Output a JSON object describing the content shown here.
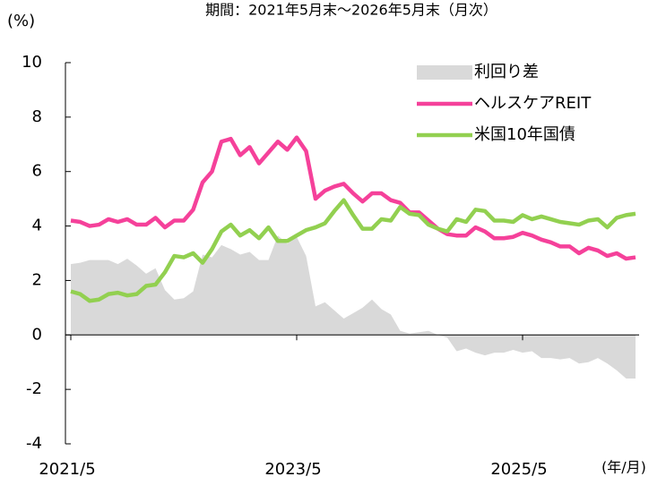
{
  "chart_data": {
    "type": "line",
    "title": "期間：2021年5月末～2026年5月末（月次）",
    "y_label": "(%)",
    "x_label": "(年/月)",
    "categories": [
      "2021/5",
      null,
      null,
      null,
      null,
      null,
      null,
      null,
      null,
      null,
      null,
      null,
      null,
      null,
      null,
      null,
      null,
      null,
      null,
      null,
      null,
      null,
      null,
      null,
      "2023/5",
      null,
      null,
      null,
      null,
      null,
      null,
      null,
      null,
      null,
      null,
      null,
      null,
      null,
      null,
      null,
      null,
      null,
      null,
      null,
      null,
      null,
      null,
      null,
      "2025/5",
      null,
      null,
      null,
      null,
      null,
      null,
      null,
      null,
      null,
      null,
      null,
      null
    ],
    "ylim": [
      -4,
      10
    ],
    "yticks": [
      -4,
      -2,
      0,
      2,
      4,
      6,
      8,
      10
    ],
    "legend": "upper right",
    "series": [
      {
        "name": "利回り差",
        "style": "area",
        "color": "#d9d9d9",
        "values": [
          2.6,
          2.65,
          2.75,
          2.75,
          2.75,
          2.6,
          2.8,
          2.55,
          2.25,
          2.45,
          1.65,
          1.3,
          1.35,
          1.6,
          2.95,
          2.85,
          3.3,
          3.15,
          2.95,
          3.05,
          2.75,
          2.75,
          3.65,
          3.35,
          3.6,
          2.9,
          1.05,
          1.2,
          0.9,
          0.6,
          0.8,
          1.0,
          1.3,
          0.95,
          0.75,
          0.15,
          0.05,
          0.1,
          0.15,
          0.0,
          -0.1,
          -0.6,
          -0.5,
          -0.65,
          -0.75,
          -0.65,
          -0.65,
          -0.55,
          -0.65,
          -0.6,
          -0.85,
          -0.85,
          -0.9,
          -0.85,
          -1.05,
          -1.0,
          -0.85,
          -1.05,
          -1.3,
          -1.6,
          -1.6
        ]
      },
      {
        "name": "ヘルスケアREIT",
        "style": "line",
        "color": "#f5419a",
        "values": [
          4.2,
          4.15,
          4.0,
          4.05,
          4.25,
          4.15,
          4.25,
          4.05,
          4.05,
          4.3,
          3.95,
          4.2,
          4.2,
          4.6,
          5.6,
          6.0,
          7.1,
          7.2,
          6.6,
          6.9,
          6.3,
          6.7,
          7.1,
          6.8,
          7.25,
          6.75,
          5.0,
          5.3,
          5.45,
          5.55,
          5.2,
          4.9,
          5.2,
          5.2,
          4.95,
          4.85,
          4.5,
          4.5,
          4.2,
          3.9,
          3.7,
          3.65,
          3.65,
          3.95,
          3.8,
          3.55,
          3.55,
          3.6,
          3.75,
          3.65,
          3.5,
          3.4,
          3.25,
          3.25,
          3.0,
          3.2,
          3.1,
          2.9,
          3.0,
          2.8,
          2.85
        ]
      },
      {
        "name": "米国10年国債",
        "style": "line",
        "color": "#92d050",
        "values": [
          1.6,
          1.5,
          1.25,
          1.3,
          1.5,
          1.55,
          1.45,
          1.5,
          1.8,
          1.85,
          2.3,
          2.9,
          2.85,
          3.0,
          2.65,
          3.15,
          3.8,
          4.05,
          3.65,
          3.85,
          3.55,
          3.95,
          3.45,
          3.45,
          3.65,
          3.85,
          3.95,
          4.1,
          4.55,
          4.95,
          4.4,
          3.9,
          3.9,
          4.25,
          4.2,
          4.7,
          4.45,
          4.4,
          4.05,
          3.9,
          3.8,
          4.25,
          4.15,
          4.6,
          4.55,
          4.2,
          4.2,
          4.15,
          4.4,
          4.25,
          4.35,
          4.25,
          4.15,
          4.1,
          4.05,
          4.2,
          4.25,
          3.95,
          4.3,
          4.4,
          4.45
        ]
      }
    ]
  }
}
